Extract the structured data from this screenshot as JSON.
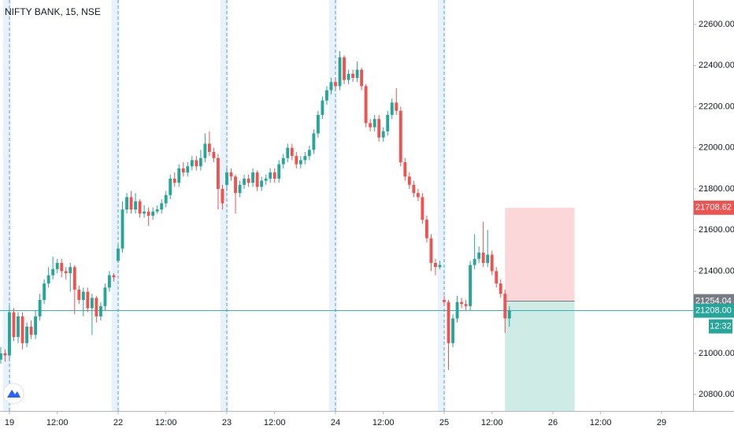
{
  "chart_data": {
    "type": "candlestick",
    "title": "NIFTY BANK, 15, NSE",
    "up_color": "#26a69a",
    "down_color": "#ef5350",
    "x": [
      -2,
      -1,
      0,
      1,
      2,
      3,
      4,
      5,
      6,
      7,
      8,
      9,
      10,
      11,
      12,
      13,
      14,
      15,
      16,
      17,
      18,
      19,
      20,
      21,
      22,
      23,
      24,
      25,
      26,
      27,
      28,
      29,
      30,
      31,
      32,
      33,
      34,
      35,
      36,
      37,
      38,
      39,
      40,
      41,
      42,
      43,
      44,
      45,
      46,
      47,
      48,
      49,
      50,
      51,
      52,
      53,
      54,
      55,
      56,
      57,
      58,
      59,
      60,
      61,
      62,
      63,
      64,
      65,
      66,
      67,
      68,
      69,
      70,
      71,
      72,
      73,
      74,
      75,
      76,
      77,
      78,
      79,
      80,
      81,
      82,
      83,
      84,
      85,
      86,
      87,
      88,
      89,
      90,
      91,
      92,
      93,
      94,
      95,
      96,
      97,
      98,
      99,
      100,
      101,
      102,
      103,
      104,
      105,
      106,
      107,
      108,
      109,
      110,
      111,
      112,
      113,
      114,
      115
    ],
    "open": [
      20970,
      21000,
      20990,
      21200,
      21080,
      21180,
      21050,
      21130,
      21090,
      21180,
      21260,
      21340,
      21380,
      21410,
      21440,
      21400,
      21390,
      21420,
      21310,
      21260,
      21300,
      21220,
      21270,
      21180,
      21230,
      21320,
      21380,
      21450,
      21510,
      21700,
      21760,
      21700,
      21740,
      21680,
      21690,
      21670,
      21690,
      21700,
      21730,
      21770,
      21850,
      21830,
      21900,
      21880,
      21910,
      21940,
      21910,
      21950,
      22020,
      21980,
      21950,
      21800,
      21820,
      21880,
      21860,
      21780,
      21820,
      21850,
      21830,
      21880,
      21810,
      21840,
      21850,
      21880,
      21850,
      21920,
      21950,
      22000,
      21960,
      21920,
      21940,
      21960,
      21990,
      22070,
      22160,
      22230,
      22280,
      22320,
      22300,
      22440,
      22330,
      22360,
      22340,
      22380,
      22300,
      22120,
      22100,
      22140,
      22050,
      22080,
      22160,
      22220,
      22180,
      21930,
      21860,
      21820,
      21780,
      21760,
      21650,
      21560,
      21440,
      21420,
      21260,
      21250,
      21050,
      21170,
      21250,
      21240,
      21230,
      21430,
      21460,
      21490,
      21440,
      21480,
      21400,
      21340,
      21290,
      21170
    ],
    "high": [
      21030,
      21020,
      21230,
      21220,
      21200,
      21200,
      21150,
      21160,
      21210,
      21290,
      21360,
      21420,
      21470,
      21460,
      21460,
      21420,
      21440,
      21430,
      21330,
      21320,
      21320,
      21290,
      21280,
      21250,
      21340,
      21400,
      21390,
      21530,
      21740,
      21780,
      21790,
      21780,
      21750,
      21720,
      21710,
      21710,
      21720,
      21750,
      21790,
      21870,
      21880,
      21920,
      21930,
      21930,
      21960,
      21960,
      21990,
      22070,
      22080,
      22000,
      21970,
      21820,
      21900,
      21900,
      21870,
      21840,
      21870,
      21870,
      21900,
      21890,
      21860,
      21870,
      21900,
      21900,
      21940,
      21970,
      22020,
      22020,
      21980,
      21960,
      21980,
      22010,
      22090,
      22180,
      22250,
      22300,
      22340,
      22340,
      22470,
      22450,
      22380,
      22380,
      22420,
      22390,
      22310,
      22140,
      22160,
      22160,
      22100,
      22180,
      22240,
      22290,
      22200,
      21950,
      21880,
      21840,
      21800,
      21780,
      21670,
      21580,
      21460,
      21450,
      21280,
      21260,
      21190,
      21280,
      21270,
      21260,
      21450,
      21580,
      21520,
      21640,
      21600,
      21500,
      21420,
      21360,
      21310,
      21230
    ],
    "low": [
      20950,
      20960,
      20970,
      21060,
      21050,
      21020,
      21030,
      21070,
      21070,
      21160,
      21240,
      21320,
      21360,
      21390,
      21370,
      21360,
      21300,
      21190,
      21240,
      21180,
      21200,
      21090,
      21150,
      21160,
      21210,
      21300,
      21350,
      21440,
      21490,
      21680,
      21680,
      21680,
      21660,
      21660,
      21620,
      21650,
      21680,
      21680,
      21710,
      21750,
      21810,
      21810,
      21860,
      21860,
      21890,
      21890,
      21890,
      21930,
      21960,
      21930,
      21700,
      21700,
      21790,
      21840,
      21680,
      21760,
      21800,
      21810,
      21810,
      21790,
      21790,
      21820,
      21830,
      21830,
      21830,
      21900,
      21930,
      21940,
      21900,
      21900,
      21920,
      21940,
      21970,
      22050,
      22140,
      22210,
      22260,
      22280,
      22280,
      22310,
      22310,
      22320,
      22320,
      22280,
      22100,
      22080,
      22080,
      22030,
      22030,
      22060,
      22140,
      22160,
      21910,
      21840,
      21800,
      21760,
      21740,
      21630,
      21540,
      21400,
      21380,
      21410,
      21230,
      20920,
      21030,
      21150,
      21220,
      21210,
      21210,
      21410,
      21440,
      21420,
      21420,
      21380,
      21320,
      21270,
      21100,
      21130
    ],
    "close": [
      21000,
      20990,
      21200,
      21080,
      21180,
      21050,
      21130,
      21090,
      21180,
      21260,
      21340,
      21380,
      21410,
      21440,
      21400,
      21390,
      21420,
      21310,
      21260,
      21300,
      21220,
      21270,
      21180,
      21230,
      21320,
      21380,
      21370,
      21510,
      21700,
      21760,
      21700,
      21740,
      21680,
      21690,
      21670,
      21690,
      21700,
      21730,
      21770,
      21850,
      21830,
      21900,
      21880,
      21910,
      21940,
      21910,
      21950,
      22020,
      21980,
      21950,
      21800,
      21730,
      21880,
      21860,
      21780,
      21820,
      21850,
      21830,
      21880,
      21810,
      21840,
      21850,
      21880,
      21850,
      21920,
      21950,
      22000,
      21960,
      21920,
      21940,
      21960,
      21990,
      22070,
      22160,
      22230,
      22280,
      22320,
      22300,
      22440,
      22330,
      22360,
      22340,
      22380,
      22300,
      22120,
      22100,
      22140,
      22050,
      22080,
      22160,
      22220,
      22180,
      21930,
      21860,
      21820,
      21780,
      21760,
      21650,
      21560,
      21440,
      21420,
      21430,
      21250,
      21050,
      21170,
      21250,
      21240,
      21230,
      21430,
      21460,
      21490,
      21440,
      21480,
      21400,
      21340,
      21290,
      21170,
      21208
    ],
    "xlim": [
      -2.17,
      157.25
    ],
    "ylim": [
      20720,
      22719
    ],
    "xticks": [
      {
        "value": 0,
        "label": "19"
      },
      {
        "value": 11,
        "label": "12:00"
      },
      {
        "value": 25,
        "label": "22"
      },
      {
        "value": 36,
        "label": "12:00"
      },
      {
        "value": 50,
        "label": "23"
      },
      {
        "value": 61,
        "label": "12:00"
      },
      {
        "value": 75,
        "label": "24"
      },
      {
        "value": 86,
        "label": "12:00"
      },
      {
        "value": 100,
        "label": "25"
      },
      {
        "value": 111,
        "label": "12:00"
      },
      {
        "value": 125,
        "label": "26"
      },
      {
        "value": 136,
        "label": "12:00"
      },
      {
        "value": 150,
        "label": "29"
      }
    ],
    "yticks": [
      {
        "value": 20800,
        "label": "20800.00"
      },
      {
        "value": 21000,
        "label": "21000.00"
      },
      {
        "value": 21200,
        "label": "21200.00"
      },
      {
        "value": 21400,
        "label": "21400.00"
      },
      {
        "value": 21600,
        "label": "21600.00"
      },
      {
        "value": 21800,
        "label": "21800.00"
      },
      {
        "value": 22000,
        "label": "22000.00"
      },
      {
        "value": 22200,
        "label": "22200.00"
      },
      {
        "value": 22400,
        "label": "22400.00"
      },
      {
        "value": 22600,
        "label": "22600.00"
      }
    ],
    "session_starts": [
      0,
      25,
      50,
      75,
      100
    ],
    "position": {
      "x_start": 114,
      "x_end": 130,
      "entry": 21254.04,
      "stop": 21708.62,
      "target": 20720
    },
    "last_price": {
      "value": 21208,
      "label": "21208.00"
    },
    "countdown": "12:32"
  }
}
